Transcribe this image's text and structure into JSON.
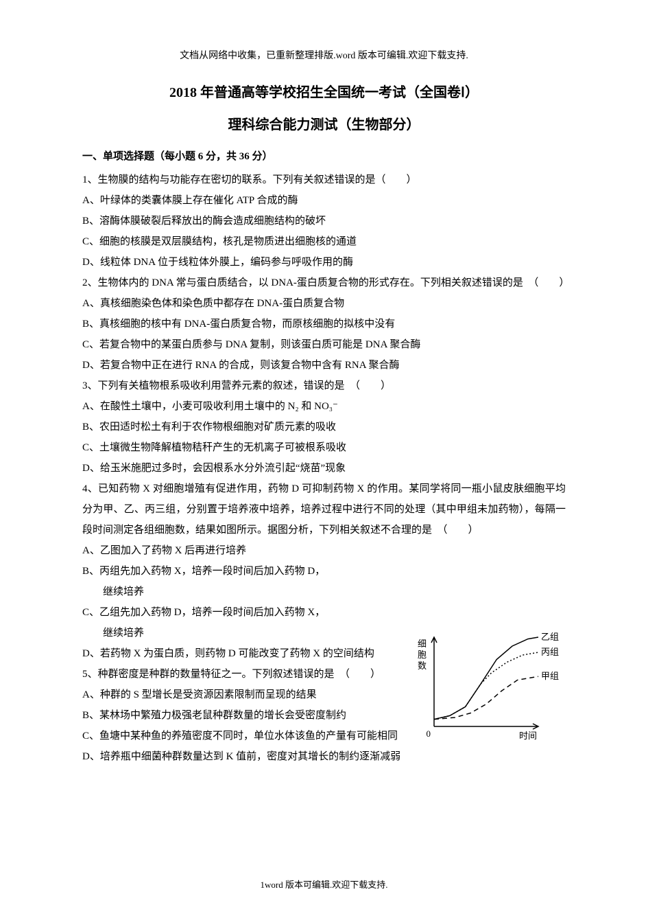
{
  "header_note": "文档从网络中收集，已重新整理排版.word 版本可编辑.欢迎下载支持.",
  "title_main": "2018 年普通高等学校招生全国统一考试（全国卷Ⅰ）",
  "title_sub": "理科综合能力测试（生物部分）",
  "section_heading": "一、单项选择题（每小题 6 分，共 36 分）",
  "q1": {
    "stem": "1、生物膜的结构与功能存在密切的联系。下列有关叙述错误的是（　　）",
    "A": "A、叶绿体的类囊体膜上存在催化 ATP 合成的酶",
    "B": "B、溶酶体膜破裂后释放出的酶会造成细胞结构的破坏",
    "C": "C、细胞的核膜是双层膜结构，核孔是物质进出细胞核的通道",
    "D": "D、线粒体 DNA 位于线粒体外膜上，编码参与呼吸作用的酶"
  },
  "q2": {
    "stem": "2、生物体内的 DNA 常与蛋白质结合，以 DNA-蛋白质复合物的形式存在。下列相关叙述错误的是　（　　）",
    "A": "A、真核细胞染色体和染色质中都存在 DNA-蛋白质复合物",
    "B": "B、真核细胞的核中有 DNA-蛋白质复合物，而原核细胞的拟核中没有",
    "C": "C、若复合物中的某蛋白质参与 DNA 复制，则该蛋白质可能是 DNA 聚合酶",
    "D": "D、若复合物中正在进行 RNA 的合成，则该复合物中含有 RNA 聚合酶"
  },
  "q3": {
    "stem": "3、下列有关植物根系吸收利用营养元素的叙述，错误的是　（　　）",
    "A": "A、在酸性土壤中，小麦可吸收利用土壤中的 N₂ 和 NO₃⁻",
    "B": "B、农田适时松土有利于农作物根细胞对矿质元素的吸收",
    "C": "C、土壤微生物降解植物秸秆产生的无机离子可被根系吸收",
    "D": "D、给玉米施肥过多时，会因根系水分外流引起“烧苗”现象"
  },
  "q4": {
    "stem": "4、已知药物 X 对细胞增殖有促进作用，药物 D 可抑制药物 X 的作用。某同学将同一瓶小鼠皮肤细胞平均分为甲、乙、丙三组，分别置于培养液中培养，培养过程中进行不同的处理（其中甲组未加药物），每隔一段时间测定各组细胞数，结果如图所示。据图分析，下列相关叙述不合理的是　（　　）",
    "A": "A、乙图加入了药物 X 后再进行培养",
    "B": "B、丙组先加入药物 X，培养一段时间后加入药物 D，",
    "B2": "继续培养",
    "C": "C、乙组先加入药物 D，培养一段时间后加入药物 X，",
    "C2": "继续培养",
    "D": "D、若药物 X 为蛋白质，则药物 D 可能改变了药物 X 的空间结构"
  },
  "q5": {
    "stem": "5、种群密度是种群的数量特征之一。下列叙述错误的是　（　　）",
    "A": "A、种群的 S 型增长是受资源因素限制而呈现的结果",
    "B": "B、某林场中繁殖力极强老鼠种群数量的增长会受密度制约",
    "C": "C、鱼塘中某种鱼的养殖密度不同时，单位水体该鱼的产量有可能相同",
    "D": "D、培养瓶中细菌种群数量达到 K 值前，密度对其增长的制约逐渐减弱"
  },
  "chart": {
    "type": "line",
    "y_label": "细胞数",
    "x_label": "时间",
    "x_origin": "0",
    "series": [
      {
        "name": "乙组",
        "style": "solid",
        "color": "#000000",
        "points": [
          [
            0,
            8
          ],
          [
            15,
            12
          ],
          [
            30,
            22
          ],
          [
            45,
            48
          ],
          [
            60,
            75
          ],
          [
            75,
            90
          ],
          [
            90,
            98
          ],
          [
            100,
            100
          ]
        ]
      },
      {
        "name": "丙组",
        "style": "dotted",
        "color": "#000000",
        "points": [
          [
            0,
            8
          ],
          [
            15,
            12
          ],
          [
            30,
            22
          ],
          [
            45,
            48
          ],
          [
            55,
            60
          ],
          [
            70,
            72
          ],
          [
            85,
            80
          ],
          [
            100,
            83
          ]
        ]
      },
      {
        "name": "甲组",
        "style": "dashed",
        "color": "#000000",
        "points": [
          [
            0,
            8
          ],
          [
            20,
            10
          ],
          [
            35,
            15
          ],
          [
            50,
            25
          ],
          [
            65,
            40
          ],
          [
            80,
            52
          ],
          [
            95,
            55
          ],
          [
            100,
            56
          ]
        ]
      }
    ],
    "axis_color": "#000000",
    "background_color": "#ffffff",
    "label_fontsize": 13,
    "line_width": 1.5
  },
  "footer_note": "1word 版本可编辑.欢迎下载支持."
}
